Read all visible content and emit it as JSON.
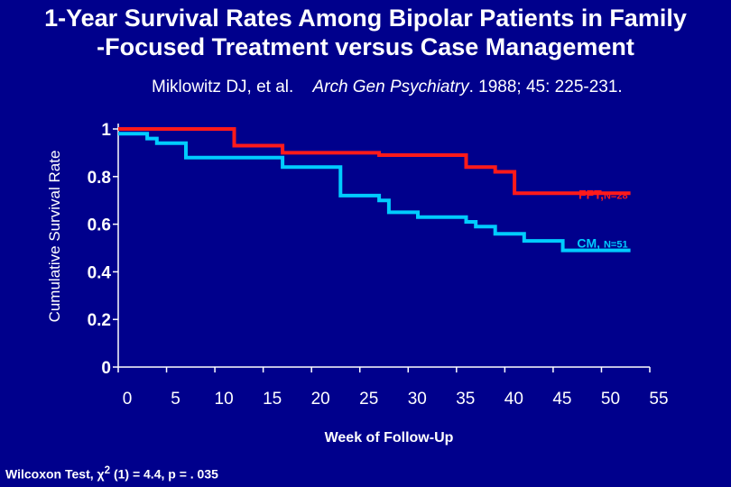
{
  "title_line1": "1-Year Survival Rates Among Bipolar Patients in Family",
  "title_line2": "-Focused Treatment versus Case Management",
  "citation": {
    "authors": "Miklowitz DJ, et al.",
    "journal": "Arch Gen Psychiatry",
    "details": ". 1988; 45: 225-231."
  },
  "footnote": {
    "prefix": "Wilcoxon Test, ",
    "chi": "χ",
    "sup": "2",
    "suffix": " (1) = 4.4, p = . 035"
  },
  "chart_data": {
    "type": "line",
    "step": true,
    "title": "1-Year Survival Rates Among Bipolar Patients in Family -Focused Treatment versus Case Management",
    "xlabel": "Week of Follow-Up",
    "ylabel": "Cumulative Survival Rate",
    "xlim": [
      0,
      55
    ],
    "ylim": [
      0,
      1
    ],
    "xticks": [
      0,
      5,
      10,
      15,
      20,
      25,
      30,
      35,
      40,
      45,
      50,
      55
    ],
    "yticks": [
      0,
      0.2,
      0.4,
      0.6,
      0.8,
      1
    ],
    "ytick_labels": [
      "0",
      "0.2",
      "0.4",
      "0.6",
      "0.8",
      "1"
    ],
    "grid": false,
    "series": [
      {
        "label_main": "FFT,",
        "label_sub": "N=28",
        "color": "#ff1a1a",
        "points": [
          [
            0,
            1.0
          ],
          [
            12,
            1.0
          ],
          [
            12,
            0.93
          ],
          [
            17,
            0.93
          ],
          [
            17,
            0.9
          ],
          [
            27,
            0.9
          ],
          [
            27,
            0.89
          ],
          [
            36,
            0.89
          ],
          [
            36,
            0.84
          ],
          [
            39,
            0.84
          ],
          [
            39,
            0.82
          ],
          [
            41,
            0.82
          ],
          [
            41,
            0.73
          ],
          [
            53,
            0.73
          ]
        ]
      },
      {
        "label_main": "CM,",
        "label_sub": "N=51",
        "color": "#00ccff",
        "points": [
          [
            0,
            0.98
          ],
          [
            3,
            0.98
          ],
          [
            3,
            0.96
          ],
          [
            4,
            0.96
          ],
          [
            4,
            0.94
          ],
          [
            7,
            0.94
          ],
          [
            7,
            0.88
          ],
          [
            17,
            0.88
          ],
          [
            17,
            0.84
          ],
          [
            23,
            0.84
          ],
          [
            23,
            0.72
          ],
          [
            27,
            0.72
          ],
          [
            27,
            0.7
          ],
          [
            28,
            0.7
          ],
          [
            28,
            0.65
          ],
          [
            31,
            0.65
          ],
          [
            31,
            0.63
          ],
          [
            36,
            0.63
          ],
          [
            36,
            0.61
          ],
          [
            37,
            0.61
          ],
          [
            37,
            0.59
          ],
          [
            39,
            0.59
          ],
          [
            39,
            0.56
          ],
          [
            42,
            0.56
          ],
          [
            42,
            0.53
          ],
          [
            46,
            0.53
          ],
          [
            46,
            0.49
          ],
          [
            53,
            0.49
          ]
        ]
      }
    ]
  }
}
